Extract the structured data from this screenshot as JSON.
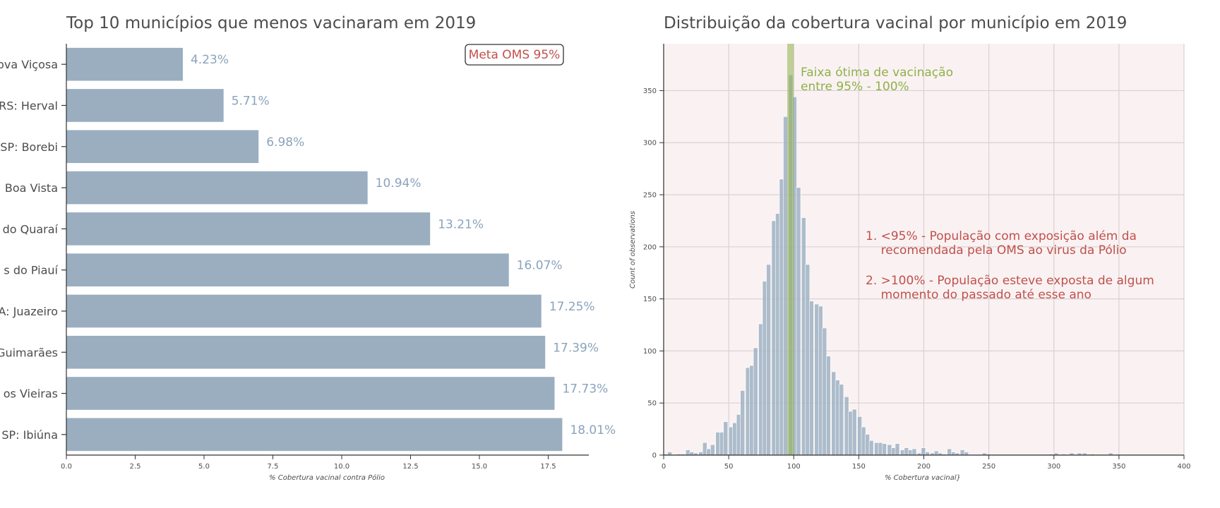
{
  "chart_data": [
    {
      "type": "bar",
      "orientation": "horizontal",
      "title": "Top 10 municípios que menos vacinaram em 2019",
      "xlabel": "% Cobertura vacinal contra Pólio",
      "ylabel": "",
      "categories": [
        "ova Viçosa",
        "RS: Herval",
        "SP: Borebi",
        "Boa Vista",
        "do Quaraí",
        "s do Piauí",
        "A: Juazeiro",
        "Guimarães",
        "os Vieiras",
        "SP: Ibiúna"
      ],
      "values": [
        4.23,
        5.71,
        6.98,
        10.94,
        13.21,
        16.07,
        17.25,
        17.39,
        17.73,
        18.01
      ],
      "value_labels": [
        "4.23%",
        "5.71%",
        "6.98%",
        "10.94%",
        "13.21%",
        "16.07%",
        "17.25%",
        "17.39%",
        "17.73%",
        "18.01%"
      ],
      "xticks": [
        "0.0",
        "2.5",
        "5.0",
        "7.5",
        "10.0",
        "12.5",
        "15.0",
        "17.5"
      ],
      "xlim": [
        0,
        19
      ],
      "annotation": "Meta OMS 95%",
      "bar_color": "#9aaec0",
      "label_color": "#8aa3bd",
      "annotation_color": "#c0504d"
    },
    {
      "type": "histogram",
      "title": "Distribuição da cobertura vacinal por município em 2019",
      "xlabel": "% Cobertura vacinal}",
      "ylabel": "Count of observations",
      "xlim": [
        0,
        400
      ],
      "ylim": [
        0,
        395
      ],
      "xticks": [
        "0",
        "50",
        "100",
        "150",
        "200",
        "250",
        "300",
        "350",
        "400"
      ],
      "yticks": [
        "0",
        "50",
        "100",
        "150",
        "200",
        "250",
        "300",
        "350"
      ],
      "bin_width": 3.3,
      "bins": [
        [
          0,
          1
        ],
        [
          3,
          3
        ],
        [
          7,
          0
        ],
        [
          10,
          1
        ],
        [
          13,
          1
        ],
        [
          17,
          5
        ],
        [
          20,
          3
        ],
        [
          23,
          2
        ],
        [
          27,
          3
        ],
        [
          30,
          12
        ],
        [
          33,
          6
        ],
        [
          36,
          10
        ],
        [
          40,
          22
        ],
        [
          43,
          22
        ],
        [
          46,
          32
        ],
        [
          50,
          27
        ],
        [
          53,
          31
        ],
        [
          56,
          39
        ],
        [
          59,
          62
        ],
        [
          63,
          84
        ],
        [
          66,
          86
        ],
        [
          69,
          103
        ],
        [
          73,
          126
        ],
        [
          76,
          167
        ],
        [
          79,
          183
        ],
        [
          83,
          225
        ],
        [
          86,
          232
        ],
        [
          89,
          265
        ],
        [
          92,
          325
        ],
        [
          96,
          365
        ],
        [
          99,
          344
        ],
        [
          102,
          257
        ],
        [
          106,
          228
        ],
        [
          109,
          183
        ],
        [
          112,
          148
        ],
        [
          116,
          145
        ],
        [
          119,
          143
        ],
        [
          122,
          122
        ],
        [
          125,
          95
        ],
        [
          129,
          80
        ],
        [
          132,
          72
        ],
        [
          135,
          68
        ],
        [
          139,
          56
        ],
        [
          142,
          42
        ],
        [
          145,
          44
        ],
        [
          149,
          37
        ],
        [
          152,
          27
        ],
        [
          155,
          20
        ],
        [
          158,
          14
        ],
        [
          162,
          12
        ],
        [
          165,
          12
        ],
        [
          168,
          11
        ],
        [
          172,
          10
        ],
        [
          175,
          7
        ],
        [
          178,
          11
        ],
        [
          182,
          5
        ],
        [
          185,
          7
        ],
        [
          188,
          5
        ],
        [
          191,
          6
        ],
        [
          195,
          2
        ],
        [
          198,
          7
        ],
        [
          201,
          3
        ],
        [
          205,
          2
        ],
        [
          208,
          4
        ],
        [
          211,
          2
        ],
        [
          214,
          1
        ],
        [
          218,
          6
        ],
        [
          221,
          3
        ],
        [
          224,
          2
        ],
        [
          228,
          5
        ],
        [
          231,
          3
        ],
        [
          245,
          2
        ],
        [
          248,
          1
        ],
        [
          296,
          1
        ],
        [
          300,
          2
        ],
        [
          306,
          1
        ],
        [
          312,
          2
        ],
        [
          318,
          2
        ],
        [
          322,
          2
        ],
        [
          328,
          1
        ],
        [
          342,
          2
        ]
      ],
      "optimal_band": [
        95,
        100
      ],
      "annotation_band": "Faixa ótima de vacinação\nentre 95% - 100%",
      "annotation_notes": [
        "1. <95% - População com exposição além da\n    recomendada pela OMS ao virus da Pólio",
        "2. >100% - População esteve exposta de algum\n    momento do passado até esse ano"
      ],
      "background_color": "#faf2f2",
      "bar_color": "#9aaec0",
      "band_color": "#8fb04a",
      "note_color": "#c0504d"
    }
  ]
}
